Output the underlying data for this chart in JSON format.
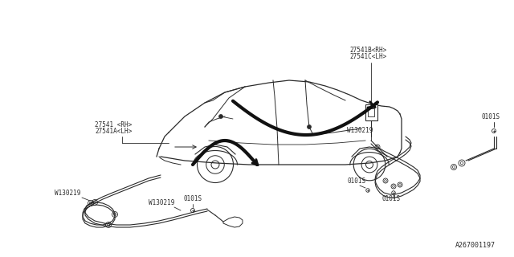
{
  "bg_color": "#ffffff",
  "line_color": "#2a2a2a",
  "text_color": "#2a2a2a",
  "labels": {
    "front_part1": "27541 <RH>",
    "front_part2": "27541A<LH>",
    "rear_part1": "27541B<RH>",
    "rear_part2": "27541C<LH>",
    "washer1": "W130219",
    "washer2": "W130219",
    "washer3": "W130219",
    "bolt1": "0101S",
    "bolt2": "0101S",
    "bolt3": "0101S",
    "bolt4": "0101S",
    "diagram_ref": "A267001197"
  },
  "font_size": 5.5,
  "diagram_ref_size": 6.0
}
